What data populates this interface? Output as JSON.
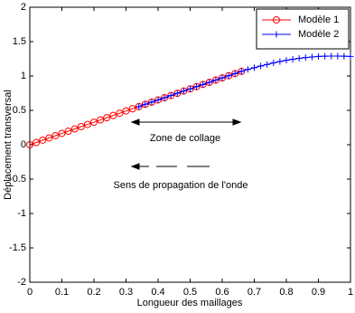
{
  "chart_data": {
    "type": "line",
    "xlabel": "Longueur des maillages",
    "ylabel": "Déplacement transversal",
    "xlim": [
      0,
      1
    ],
    "ylim": [
      -2,
      2
    ],
    "xticks": [
      0,
      0.1,
      0.2,
      0.3,
      0.4,
      0.5,
      0.6,
      0.7,
      0.8,
      0.9,
      1
    ],
    "yticks": [
      -2,
      -1.5,
      -1,
      -0.5,
      0,
      0.5,
      1,
      1.5,
      2
    ],
    "legend": "top-right",
    "annotations": [
      "Zone de collage",
      "Sens de propagation de l'onde"
    ],
    "series": [
      {
        "name": "Modèle 1",
        "color": "#ff0000",
        "marker": "circle",
        "x": [
          0,
          0.02,
          0.04,
          0.06,
          0.08,
          0.1,
          0.12,
          0.14,
          0.16,
          0.18,
          0.2,
          0.22,
          0.24,
          0.26,
          0.28,
          0.3,
          0.32,
          0.34,
          0.36,
          0.38,
          0.4,
          0.42,
          0.44,
          0.46,
          0.48,
          0.5,
          0.52,
          0.54,
          0.56,
          0.58,
          0.6,
          0.62,
          0.64,
          0.66
        ],
        "values": [
          0,
          0.033,
          0.066,
          0.099,
          0.132,
          0.164,
          0.197,
          0.23,
          0.263,
          0.295,
          0.328,
          0.361,
          0.393,
          0.426,
          0.458,
          0.491,
          0.523,
          0.555,
          0.588,
          0.62,
          0.652,
          0.684,
          0.716,
          0.748,
          0.781,
          0.813,
          0.845,
          0.877,
          0.908,
          0.94,
          0.972,
          1.004,
          1.035,
          1.067
        ]
      },
      {
        "name": "Modèle 2",
        "color": "#0000ff",
        "marker": "plus",
        "x": [
          0.34,
          0.36,
          0.38,
          0.4,
          0.42,
          0.44,
          0.46,
          0.48,
          0.5,
          0.52,
          0.54,
          0.56,
          0.58,
          0.6,
          0.62,
          0.64,
          0.66,
          0.68,
          0.7,
          0.72,
          0.74,
          0.76,
          0.78,
          0.8,
          0.82,
          0.84,
          0.86,
          0.88,
          0.9,
          0.92,
          0.94,
          0.96,
          0.98,
          1
        ],
        "values": [
          0.555,
          0.588,
          0.62,
          0.652,
          0.684,
          0.716,
          0.748,
          0.781,
          0.813,
          0.845,
          0.877,
          0.908,
          0.94,
          0.972,
          1.004,
          1.035,
          1.067,
          1.095,
          1.12,
          1.145,
          1.168,
          1.19,
          1.21,
          1.228,
          1.243,
          1.257,
          1.268,
          1.277,
          1.284,
          1.288,
          1.29,
          1.29,
          1.288,
          1.285
        ]
      }
    ]
  }
}
